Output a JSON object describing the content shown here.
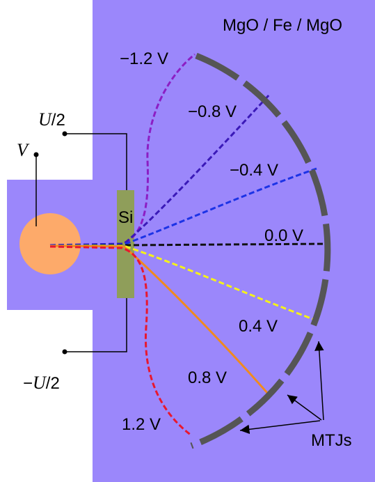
{
  "layer_label": "MgO / Fe / MgO",
  "channel_label": "Si",
  "wires": [
    {
      "prefix": "",
      "symbol": "U",
      "suffix": "/2"
    },
    {
      "prefix": "",
      "symbol": "V",
      "suffix": ""
    },
    {
      "prefix": "−",
      "symbol": "U",
      "suffix": "/2"
    }
  ],
  "curves": [
    {
      "label": "−1.2 V"
    },
    {
      "label": "−0.8 V"
    },
    {
      "label": "−0.4 V"
    },
    {
      "label": "0.0 V"
    },
    {
      "label": "0.4 V"
    },
    {
      "label": "0.8 V"
    },
    {
      "label": "1.2 V"
    }
  ],
  "detector_label": "MTJs"
}
